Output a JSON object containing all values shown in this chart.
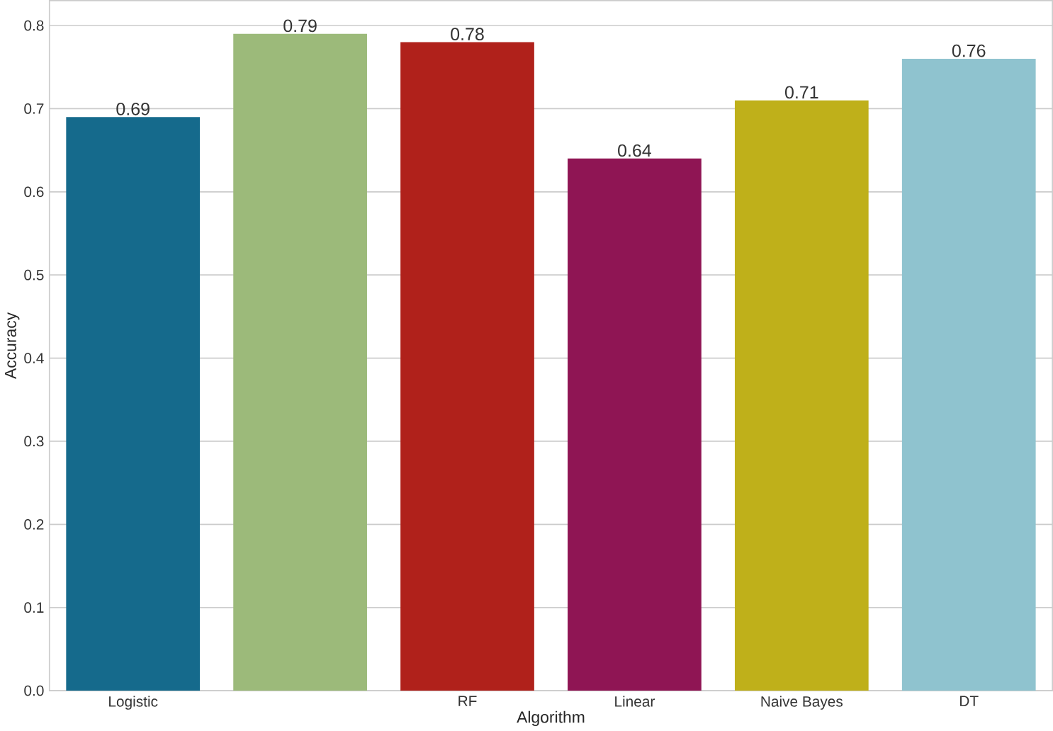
{
  "chart_data": {
    "type": "bar",
    "xlabel": "Algorithm",
    "ylabel": "Accuracy",
    "categories": [
      "Logistic",
      null,
      "RF",
      "Linear",
      "Naive Bayes",
      "DT"
    ],
    "values": [
      0.69,
      0.79,
      0.78,
      0.64,
      0.71,
      0.76
    ],
    "colors": [
      "#156a8c",
      "#9cba7a",
      "#b0211b",
      "#8f1554",
      "#bfb01a",
      "#8fc3cf"
    ],
    "ylim": [
      0,
      0.83
    ],
    "yticks": [
      {
        "value": 0,
        "label": "0.0"
      },
      0.1,
      0.2,
      0.3,
      0.4,
      0.5,
      0.6,
      0.7,
      0.8
    ],
    "grid": "y",
    "data_labels": true
  }
}
